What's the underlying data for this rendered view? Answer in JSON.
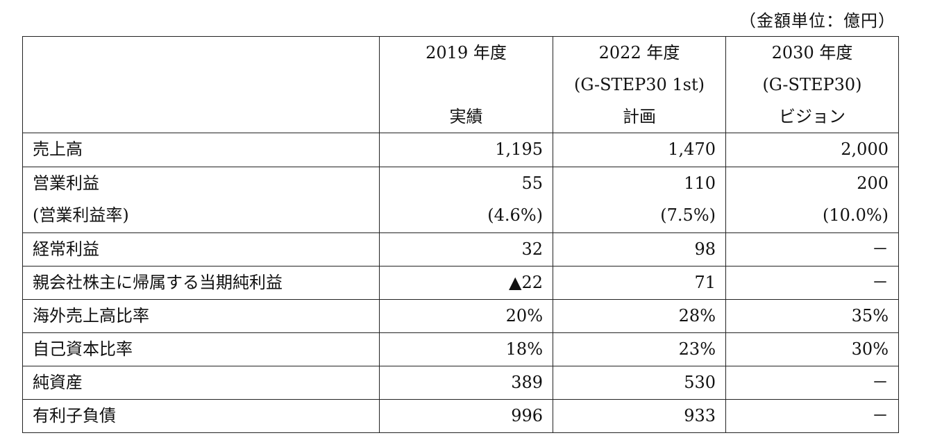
{
  "unit_note": "（金額単位：億円）",
  "header": {
    "col1": [
      "2019 年度",
      "",
      "実績"
    ],
    "col2": [
      "2022 年度",
      "(G-STEP30 1st)",
      "計画"
    ],
    "col3": [
      "2030 年度",
      "(G-STEP30)",
      "ビジョン"
    ]
  },
  "rows": [
    {
      "label": "売上高",
      "v1": "1,195",
      "v2": "1,470",
      "v3": "2,000"
    },
    {
      "label": "営業利益",
      "label2": "(営業利益率)",
      "v1": "55",
      "v1b": "(4.6%)",
      "v2": "110",
      "v2b": "(7.5%)",
      "v3": "200",
      "v3b": "(10.0%)"
    },
    {
      "label": "経常利益",
      "v1": "32",
      "v2": "98",
      "v3": "－"
    },
    {
      "label": "親会社株主に帰属する当期純利益",
      "v1": "▲22",
      "v2": "71",
      "v3": "－"
    },
    {
      "label": "海外売上高比率",
      "v1": "20%",
      "v2": "28%",
      "v3": "35%"
    },
    {
      "label": "自己資本比率",
      "v1": "18%",
      "v2": "23%",
      "v3": "30%"
    },
    {
      "label": "純資産",
      "v1": "389",
      "v2": "530",
      "v3": "－"
    },
    {
      "label": "有利子負債",
      "v1": "996",
      "v2": "933",
      "v3": "－"
    }
  ]
}
